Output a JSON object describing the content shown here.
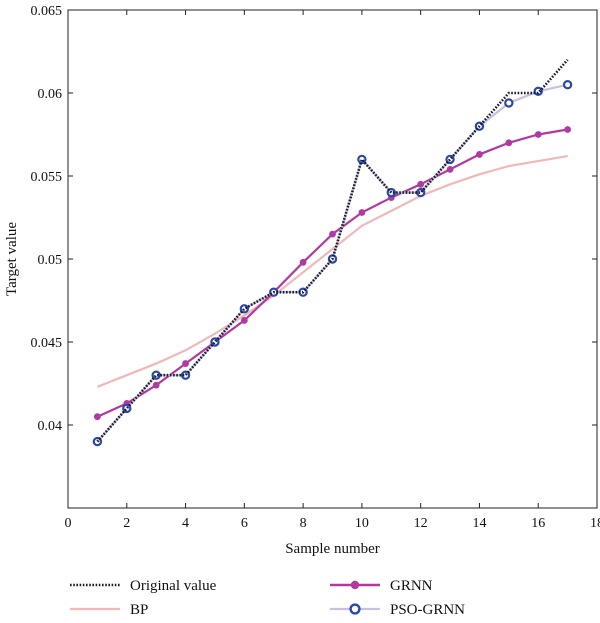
{
  "chart_data": {
    "type": "line",
    "xlabel": "Sample number",
    "ylabel": "Target value",
    "xlim": [
      0,
      18
    ],
    "ylim": [
      0.035,
      0.065
    ],
    "xticks": [
      0,
      2,
      4,
      6,
      8,
      10,
      12,
      14,
      16,
      18
    ],
    "yticks": [
      0.04,
      0.045,
      0.05,
      0.055,
      0.06,
      0.065
    ],
    "ytick_labels": [
      "0.04",
      "0.045",
      "0.05",
      "0.055",
      "0.06",
      "0.065"
    ],
    "grid": false,
    "legend_position": "bottom",
    "x": [
      1,
      2,
      3,
      4,
      5,
      6,
      7,
      8,
      9,
      10,
      11,
      12,
      13,
      14,
      15,
      16,
      17
    ],
    "series": [
      {
        "name": "Original value",
        "color": "#1a1a2e",
        "style": "dotted",
        "values": [
          0.039,
          0.041,
          0.043,
          0.043,
          0.045,
          0.047,
          0.048,
          0.048,
          0.05,
          0.056,
          0.054,
          0.054,
          0.056,
          0.058,
          0.06,
          0.06,
          0.062
        ]
      },
      {
        "name": "BP",
        "color": "#f0b8b8",
        "style": "solid",
        "values": [
          0.0423,
          0.043,
          0.0437,
          0.0445,
          0.0455,
          0.0466,
          0.0478,
          0.0492,
          0.0506,
          0.052,
          0.0529,
          0.0538,
          0.0545,
          0.0551,
          0.0556,
          0.0559,
          0.0562
        ]
      },
      {
        "name": "GRNN",
        "color": "#b03aa0",
        "style": "solid-marker",
        "values": [
          0.0405,
          0.0413,
          0.0424,
          0.0437,
          0.045,
          0.0463,
          0.048,
          0.0498,
          0.0515,
          0.0528,
          0.0537,
          0.0545,
          0.0554,
          0.0563,
          0.057,
          0.0575,
          0.0578
        ]
      },
      {
        "name": "PSO-GRNN",
        "color": "#c8c0de",
        "marker_color": "#2a48a8",
        "style": "circle-marker",
        "values": [
          0.039,
          0.041,
          0.043,
          0.043,
          0.045,
          0.047,
          0.048,
          0.048,
          0.05,
          0.056,
          0.054,
          0.054,
          0.056,
          0.058,
          0.0594,
          0.0601,
          0.0605
        ]
      }
    ]
  }
}
